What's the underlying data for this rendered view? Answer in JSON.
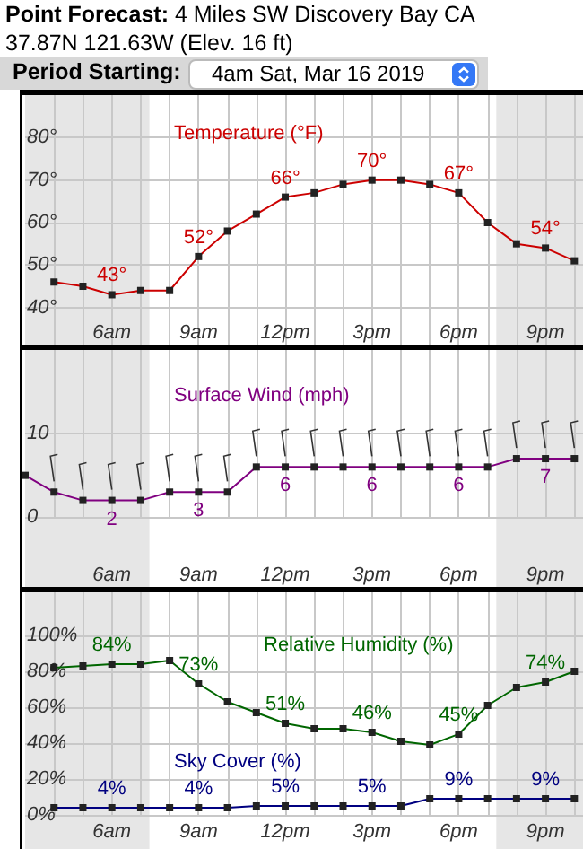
{
  "chart_data": [
    {
      "type": "line",
      "title": "Point Forecast: 4 Miles SW Discovery Bay CA",
      "subtitle": "37.87N 121.63W (Elev. 16 ft)",
      "annotations": [
        "Period Starting:",
        "4am Sat, Mar 16 2019"
      ],
      "x": [
        "2019-03-16T04:00",
        "2019-03-16T05:00",
        "2019-03-16T06:00",
        "2019-03-16T07:00",
        "2019-03-16T08:00",
        "2019-03-16T09:00",
        "2019-03-16T10:00",
        "2019-03-16T11:00",
        "2019-03-16T12:00",
        "2019-03-16T13:00",
        "2019-03-16T14:00",
        "2019-03-16T15:00",
        "2019-03-16T16:00",
        "2019-03-16T17:00",
        "2019-03-16T18:00",
        "2019-03-16T19:00",
        "2019-03-16T20:00",
        "2019-03-16T21:00",
        "2019-03-16T22:00"
      ],
      "series": [
        {
          "name": "Temperature (°F)",
          "color": "#cc0000",
          "values": [
            46,
            45,
            43,
            44,
            44,
            52,
            58,
            62,
            66,
            67,
            69,
            70,
            70,
            69,
            67,
            60,
            55,
            54,
            51
          ],
          "value_labels": [
            null,
            null,
            "43°",
            null,
            null,
            "52°",
            null,
            null,
            "66°",
            null,
            null,
            "70°",
            null,
            null,
            "67°",
            null,
            null,
            "54°",
            null
          ]
        }
      ],
      "xlim": [
        "2019-03-16T03:00",
        "2019-03-16T22:18"
      ],
      "xticks": [
        {
          "value": "2019-03-16T04:00",
          "label": null
        },
        {
          "value": "2019-03-16T05:00",
          "label": null
        },
        {
          "value": "2019-03-16T06:00",
          "label": "6am"
        },
        {
          "value": "2019-03-16T07:00",
          "label": null
        },
        {
          "value": "2019-03-16T08:00",
          "label": null
        },
        {
          "value": "2019-03-16T09:00",
          "label": "9am"
        },
        {
          "value": "2019-03-16T10:00",
          "label": null
        },
        {
          "value": "2019-03-16T11:00",
          "label": null
        },
        {
          "value": "2019-03-16T12:00",
          "label": "12pm"
        },
        {
          "value": "2019-03-16T13:00",
          "label": null
        },
        {
          "value": "2019-03-16T14:00",
          "label": null
        },
        {
          "value": "2019-03-16T15:00",
          "label": "3pm"
        },
        {
          "value": "2019-03-16T16:00",
          "label": null
        },
        {
          "value": "2019-03-16T17:00",
          "label": null
        },
        {
          "value": "2019-03-16T18:00",
          "label": "6pm"
        },
        {
          "value": "2019-03-16T19:00",
          "label": null
        },
        {
          "value": "2019-03-16T20:00",
          "label": null
        },
        {
          "value": "2019-03-16T21:00",
          "label": "9pm"
        },
        {
          "value": "2019-03-16T22:00",
          "label": null
        }
      ],
      "ylim": [
        30,
        90
      ],
      "yticks": [
        {
          "value": 40,
          "label": "40°"
        },
        {
          "value": 50,
          "label": "50°"
        },
        {
          "value": 60,
          "label": "60°"
        },
        {
          "value": 70,
          "label": "70°"
        },
        {
          "value": 80,
          "label": "80°"
        }
      ],
      "bands": [
        {
          "axis": "x",
          "from": "2019-03-16T03:00",
          "to": "2019-03-16T07:18",
          "color": "#e6e6e6"
        },
        {
          "axis": "x",
          "from": "2019-03-16T19:18",
          "to": "2019-03-16T22:18",
          "color": "#e6e6e6"
        }
      ],
      "grid": true,
      "legend": false,
      "marker": "square",
      "line_style": "solid"
    },
    {
      "type": "line",
      "x": [
        "2019-03-16T03:00",
        "2019-03-16T04:00",
        "2019-03-16T05:00",
        "2019-03-16T06:00",
        "2019-03-16T07:00",
        "2019-03-16T08:00",
        "2019-03-16T09:00",
        "2019-03-16T10:00",
        "2019-03-16T11:00",
        "2019-03-16T12:00",
        "2019-03-16T13:00",
        "2019-03-16T14:00",
        "2019-03-16T15:00",
        "2019-03-16T16:00",
        "2019-03-16T17:00",
        "2019-03-16T18:00",
        "2019-03-16T19:00",
        "2019-03-16T20:00",
        "2019-03-16T21:00",
        "2019-03-16T22:00"
      ],
      "series": [
        {
          "name": "Surface Wind (mph)",
          "color": "#800080",
          "values": [
            5,
            3,
            2,
            2,
            2,
            3,
            3,
            3,
            6,
            6,
            6,
            6,
            6,
            6,
            6,
            6,
            6,
            7,
            7,
            7
          ],
          "value_labels": [
            null,
            null,
            null,
            "2",
            null,
            null,
            "3",
            null,
            null,
            "6",
            null,
            null,
            "6",
            null,
            null,
            "6",
            null,
            null,
            "7",
            null
          ]
        }
      ],
      "xlim": [
        "2019-03-16T03:00",
        "2019-03-16T22:18"
      ],
      "xticks": [
        {
          "value": "2019-03-16T04:00",
          "label": null
        },
        {
          "value": "2019-03-16T05:00",
          "label": null
        },
        {
          "value": "2019-03-16T06:00",
          "label": "6am"
        },
        {
          "value": "2019-03-16T07:00",
          "label": null
        },
        {
          "value": "2019-03-16T08:00",
          "label": null
        },
        {
          "value": "2019-03-16T09:00",
          "label": "9am"
        },
        {
          "value": "2019-03-16T10:00",
          "label": null
        },
        {
          "value": "2019-03-16T11:00",
          "label": null
        },
        {
          "value": "2019-03-16T12:00",
          "label": "12pm"
        },
        {
          "value": "2019-03-16T13:00",
          "label": null
        },
        {
          "value": "2019-03-16T14:00",
          "label": null
        },
        {
          "value": "2019-03-16T15:00",
          "label": "3pm"
        },
        {
          "value": "2019-03-16T16:00",
          "label": null
        },
        {
          "value": "2019-03-16T17:00",
          "label": null
        },
        {
          "value": "2019-03-16T18:00",
          "label": "6pm"
        },
        {
          "value": "2019-03-16T19:00",
          "label": null
        },
        {
          "value": "2019-03-16T20:00",
          "label": null
        },
        {
          "value": "2019-03-16T21:00",
          "label": "9pm"
        },
        {
          "value": "2019-03-16T22:00",
          "label": null
        }
      ],
      "ylim": [
        -9,
        20
      ],
      "yticks": [
        0,
        10
      ],
      "bands": [
        {
          "axis": "x",
          "from": "2019-03-16T03:00",
          "to": "2019-03-16T07:18",
          "color": "#e6e6e6"
        },
        {
          "axis": "x",
          "from": "2019-03-16T19:18",
          "to": "2019-03-16T22:18",
          "color": "#e6e6e6"
        }
      ],
      "grid": true,
      "legend": false,
      "marker": "square",
      "line_style": "solid"
    },
    {
      "type": "line",
      "x": [
        "2019-03-16T04:00",
        "2019-03-16T05:00",
        "2019-03-16T06:00",
        "2019-03-16T07:00",
        "2019-03-16T08:00",
        "2019-03-16T09:00",
        "2019-03-16T10:00",
        "2019-03-16T11:00",
        "2019-03-16T12:00",
        "2019-03-16T13:00",
        "2019-03-16T14:00",
        "2019-03-16T15:00",
        "2019-03-16T16:00",
        "2019-03-16T17:00",
        "2019-03-16T18:00",
        "2019-03-16T19:00",
        "2019-03-16T20:00",
        "2019-03-16T21:00",
        "2019-03-16T22:00"
      ],
      "series": [
        {
          "name": "Relative Humidity (%)",
          "color": "#006600",
          "values": [
            82,
            83,
            84,
            84,
            86,
            73,
            63,
            57,
            51,
            48,
            48,
            46,
            41,
            39,
            45,
            61,
            71,
            74,
            80
          ],
          "value_labels": [
            null,
            null,
            "84%",
            null,
            null,
            "73%",
            null,
            null,
            "51%",
            null,
            null,
            "46%",
            null,
            null,
            "45%",
            null,
            null,
            "74%",
            null
          ]
        },
        {
          "name": "Sky Cover (%)",
          "color": "#000080",
          "values": [
            4,
            4,
            4,
            4,
            4,
            4,
            4,
            5,
            5,
            5,
            5,
            5,
            5,
            9,
            9,
            9,
            9,
            9,
            9
          ],
          "value_labels": [
            null,
            null,
            "4%",
            null,
            null,
            "4%",
            null,
            null,
            "5%",
            null,
            null,
            "5%",
            null,
            null,
            "9%",
            null,
            null,
            "9%",
            null
          ]
        }
      ],
      "xlim": [
        "2019-03-16T03:00",
        "2019-03-16T22:18"
      ],
      "xticks": [
        {
          "value": "2019-03-16T04:00",
          "label": null
        },
        {
          "value": "2019-03-16T05:00",
          "label": null
        },
        {
          "value": "2019-03-16T06:00",
          "label": "6am"
        },
        {
          "value": "2019-03-16T07:00",
          "label": null
        },
        {
          "value": "2019-03-16T08:00",
          "label": null
        },
        {
          "value": "2019-03-16T09:00",
          "label": "9am"
        },
        {
          "value": "2019-03-16T10:00",
          "label": null
        },
        {
          "value": "2019-03-16T11:00",
          "label": null
        },
        {
          "value": "2019-03-16T12:00",
          "label": "12pm"
        },
        {
          "value": "2019-03-16T13:00",
          "label": null
        },
        {
          "value": "2019-03-16T14:00",
          "label": null
        },
        {
          "value": "2019-03-16T15:00",
          "label": "3pm"
        },
        {
          "value": "2019-03-16T16:00",
          "label": null
        },
        {
          "value": "2019-03-16T17:00",
          "label": null
        },
        {
          "value": "2019-03-16T18:00",
          "label": "6pm"
        },
        {
          "value": "2019-03-16T19:00",
          "label": null
        },
        {
          "value": "2019-03-16T20:00",
          "label": null
        },
        {
          "value": "2019-03-16T21:00",
          "label": "9pm"
        },
        {
          "value": "2019-03-16T22:00",
          "label": null
        }
      ],
      "ylim": [
        -19,
        124
      ],
      "yticks": [
        {
          "value": 0,
          "label": "0%"
        },
        {
          "value": 20,
          "label": "20%"
        },
        {
          "value": 40,
          "label": "40%"
        },
        {
          "value": 60,
          "label": "60%"
        },
        {
          "value": 80,
          "label": "80%"
        },
        {
          "value": 100,
          "label": "100%"
        }
      ],
      "bands": [
        {
          "axis": "x",
          "from": "2019-03-16T03:00",
          "to": "2019-03-16T07:18",
          "color": "#e6e6e6"
        },
        {
          "axis": "x",
          "from": "2019-03-16T19:18",
          "to": "2019-03-16T22:18",
          "color": "#e6e6e6"
        }
      ],
      "grid": true,
      "legend": false,
      "marker": "square",
      "line_style": "solid"
    }
  ]
}
